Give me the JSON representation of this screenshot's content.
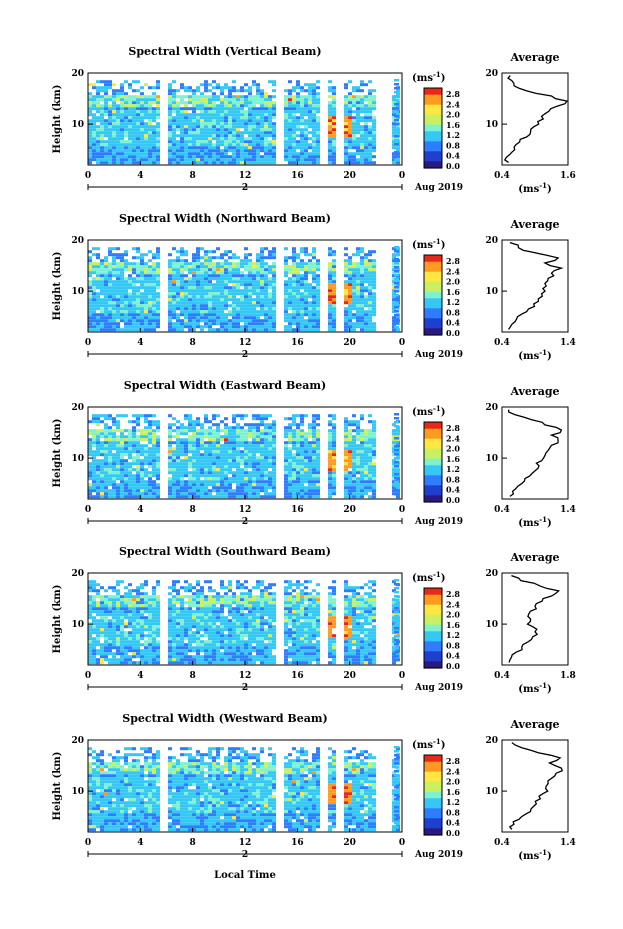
{
  "figure": {
    "xlabel": "Local Time",
    "date_label": "Aug 2019",
    "day_label": "2",
    "unit": "(ms",
    "unit_exp": "-1",
    "avg_title": "Average",
    "avg_xunit": "(ms",
    "avg_xunit_exp": "-1",
    "colors": {
      "scale": [
        "#2a1a80",
        "#1f3fcf",
        "#2f7dff",
        "#35c8f5",
        "#7ef2d0",
        "#c8f060",
        "#ffe640",
        "#ff9a20",
        "#e8281a"
      ],
      "line": "#000000"
    }
  },
  "chart_data": [
    {
      "type": "heatmap",
      "title": "Spectral Width (Vertical Beam)",
      "ylabel": "Height (km)",
      "x_ticks": [
        "0",
        "4",
        "8",
        "12",
        "16",
        "20",
        "0"
      ],
      "xlim": [
        0,
        24
      ],
      "ylim": [
        2,
        20
      ],
      "y_ticks": [
        "20",
        "10"
      ],
      "colorbar_ticks": [
        "2.8",
        "2.4",
        "2.0",
        "1.6",
        "1.2",
        "0.8",
        "0.4",
        "0.0"
      ],
      "avg_profile": {
        "title": "Average",
        "x_ticks": [
          "0.4",
          "1.6"
        ],
        "xlim": [
          0.4,
          1.6
        ],
        "y_ticks": [
          "20",
          "10"
        ],
        "ylim": [
          2,
          20
        ],
        "height_km": [
          2.5,
          3.5,
          4.5,
          5.5,
          6.5,
          7.5,
          8.5,
          9.5,
          10.5,
          11.5,
          12.5,
          13.5,
          14.5,
          15.5,
          16.5,
          17.5,
          18.5,
          19.5
        ],
        "width_ms": [
          0.52,
          0.48,
          0.58,
          0.62,
          0.72,
          0.85,
          0.92,
          0.98,
          1.05,
          1.12,
          1.25,
          1.4,
          1.58,
          1.3,
          0.85,
          0.62,
          0.58,
          0.55
        ]
      }
    },
    {
      "type": "heatmap",
      "title": "Spectral Width (Northward Beam)",
      "ylabel": "Height (km)",
      "x_ticks": [
        "0",
        "4",
        "8",
        "12",
        "16",
        "20",
        "0"
      ],
      "xlim": [
        0,
        24
      ],
      "ylim": [
        2,
        20
      ],
      "y_ticks": [
        "20",
        "10"
      ],
      "colorbar_ticks": [
        "2.8",
        "2.4",
        "2.0",
        "1.6",
        "1.2",
        "0.8",
        "0.4",
        "0.0"
      ],
      "avg_profile": {
        "title": "Average",
        "x_ticks": [
          "0.4",
          "1.4"
        ],
        "xlim": [
          0.4,
          1.4
        ],
        "y_ticks": [
          "20",
          "10"
        ],
        "ylim": [
          2,
          20
        ],
        "height_km": [
          2.5,
          3.5,
          4.5,
          5.5,
          6.5,
          7.5,
          8.5,
          9.5,
          10.5,
          11.5,
          12.5,
          13.5,
          14.5,
          15.5,
          16.5,
          17.5,
          18.5,
          19.5
        ],
        "width_ms": [
          0.5,
          0.55,
          0.62,
          0.7,
          0.8,
          0.88,
          0.95,
          1.0,
          1.02,
          1.05,
          1.1,
          1.15,
          1.3,
          1.05,
          1.25,
          0.9,
          0.65,
          0.52
        ]
      }
    },
    {
      "type": "heatmap",
      "title": "Spectral Width (Eastward Beam)",
      "ylabel": "Height (km)",
      "x_ticks": [
        "0",
        "4",
        "8",
        "12",
        "16",
        "20",
        "0"
      ],
      "xlim": [
        0,
        24
      ],
      "ylim": [
        2,
        20
      ],
      "y_ticks": [
        "20",
        "10"
      ],
      "colorbar_ticks": [
        "2.8",
        "2.4",
        "2.0",
        "1.6",
        "1.2",
        "0.8",
        "0.4",
        "0.0"
      ],
      "avg_profile": {
        "title": "Average",
        "x_ticks": [
          "0.4",
          "1.4"
        ],
        "xlim": [
          0.4,
          1.4
        ],
        "y_ticks": [
          "20",
          "10"
        ],
        "ylim": [
          2,
          20
        ],
        "height_km": [
          2.5,
          3.5,
          4.5,
          5.5,
          6.5,
          7.5,
          8.5,
          9.5,
          10.5,
          11.5,
          12.5,
          13.5,
          14.5,
          15.5,
          16.5,
          17.5,
          18.5,
          19.5
        ],
        "width_ms": [
          0.52,
          0.56,
          0.64,
          0.74,
          0.82,
          0.9,
          0.96,
          1.0,
          1.05,
          1.1,
          1.15,
          1.25,
          1.15,
          1.3,
          1.05,
          0.85,
          0.6,
          0.5
        ]
      }
    },
    {
      "type": "heatmap",
      "title": "Spectral Width (Southward Beam)",
      "ylabel": "Height (km)",
      "x_ticks": [
        "0",
        "4",
        "8",
        "12",
        "16",
        "20",
        "0"
      ],
      "xlim": [
        0,
        24
      ],
      "ylim": [
        2,
        20
      ],
      "y_ticks": [
        "20",
        "10"
      ],
      "colorbar_ticks": [
        "2.8",
        "2.4",
        "2.0",
        "1.6",
        "1.2",
        "0.8",
        "0.4",
        "0.0"
      ],
      "avg_profile": {
        "title": "Average",
        "x_ticks": [
          "0.4",
          "1.8"
        ],
        "xlim": [
          0.4,
          1.8
        ],
        "y_ticks": [
          "20",
          "10"
        ],
        "ylim": [
          2,
          20
        ],
        "height_km": [
          2.5,
          3.5,
          4.5,
          5.5,
          6.5,
          7.5,
          8.5,
          9.5,
          10.5,
          11.5,
          12.5,
          13.5,
          14.5,
          15.5,
          16.5,
          17.5,
          18.5,
          19.5
        ],
        "width_ms": [
          0.55,
          0.6,
          0.7,
          0.82,
          0.95,
          1.05,
          1.1,
          1.05,
          1.0,
          0.95,
          1.0,
          1.1,
          1.25,
          1.45,
          1.6,
          1.2,
          0.8,
          0.6
        ]
      }
    },
    {
      "type": "heatmap",
      "title": "Spectral Width (Westward Beam)",
      "ylabel": "Height (km)",
      "x_ticks": [
        "0",
        "4",
        "8",
        "12",
        "16",
        "20",
        "0"
      ],
      "xlim": [
        0,
        24
      ],
      "ylim": [
        2,
        20
      ],
      "y_ticks": [
        "20",
        "10"
      ],
      "colorbar_ticks": [
        "2.8",
        "2.4",
        "2.0",
        "1.6",
        "1.2",
        "0.8",
        "0.4",
        "0.0"
      ],
      "avg_profile": {
        "title": "Average",
        "x_ticks": [
          "0.4",
          "1.4"
        ],
        "xlim": [
          0.4,
          1.4
        ],
        "y_ticks": [
          "20",
          "10"
        ],
        "ylim": [
          2,
          20
        ],
        "height_km": [
          2.5,
          3.5,
          4.5,
          5.5,
          6.5,
          7.5,
          8.5,
          9.5,
          10.5,
          11.5,
          12.5,
          13.5,
          14.5,
          15.5,
          16.5,
          17.5,
          18.5,
          19.5
        ],
        "width_ms": [
          0.55,
          0.58,
          0.66,
          0.76,
          0.84,
          0.92,
          0.98,
          1.02,
          1.06,
          1.1,
          1.15,
          1.22,
          1.3,
          1.12,
          1.28,
          0.95,
          0.7,
          0.55
        ]
      }
    }
  ]
}
